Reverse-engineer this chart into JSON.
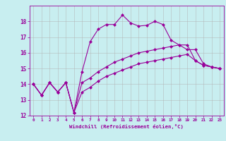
{
  "xlabel": "Windchill (Refroidissement éolien,°C)",
  "bg_color": "#c8eef0",
  "line_color": "#990099",
  "grid_color": "#b0b0b0",
  "xlim": [
    -0.5,
    23.5
  ],
  "ylim": [
    12,
    19
  ],
  "xticks": [
    0,
    1,
    2,
    3,
    4,
    5,
    6,
    7,
    8,
    9,
    10,
    11,
    12,
    13,
    14,
    15,
    16,
    17,
    18,
    19,
    20,
    21,
    22,
    23
  ],
  "yticks": [
    12,
    13,
    14,
    15,
    16,
    17,
    18
  ],
  "line1_x": [
    0,
    1,
    2,
    3,
    4,
    5,
    6,
    7,
    8,
    9,
    10,
    11,
    12,
    13,
    14,
    15,
    16,
    17,
    18,
    19,
    20,
    21,
    22,
    23
  ],
  "line1_y": [
    14.0,
    13.3,
    14.1,
    13.5,
    14.1,
    12.2,
    13.5,
    13.8,
    14.2,
    14.5,
    14.7,
    14.9,
    15.1,
    15.3,
    15.4,
    15.5,
    15.6,
    15.7,
    15.8,
    15.9,
    15.5,
    15.2,
    15.1,
    15.0
  ],
  "line2_x": [
    0,
    1,
    2,
    3,
    4,
    5,
    6,
    7,
    8,
    9,
    10,
    11,
    12,
    13,
    14,
    15,
    16,
    17,
    18,
    19,
    20,
    21,
    22,
    23
  ],
  "line2_y": [
    14.0,
    13.3,
    14.1,
    13.5,
    14.1,
    12.2,
    14.1,
    14.4,
    14.8,
    15.1,
    15.4,
    15.6,
    15.8,
    16.0,
    16.1,
    16.2,
    16.3,
    16.4,
    16.5,
    16.5,
    15.5,
    15.2,
    15.1,
    15.0
  ],
  "line3_x": [
    0,
    1,
    2,
    3,
    4,
    5,
    6,
    7,
    8,
    9,
    10,
    11,
    12,
    13,
    14,
    15,
    16,
    17,
    18,
    19,
    20,
    21,
    22,
    23
  ],
  "line3_y": [
    14.0,
    13.3,
    14.1,
    13.5,
    14.1,
    12.2,
    14.8,
    16.7,
    17.5,
    17.8,
    17.8,
    18.4,
    17.9,
    17.7,
    17.75,
    18.0,
    17.8,
    16.8,
    16.5,
    16.2,
    16.2,
    15.3,
    15.1,
    15.0
  ],
  "marker": "D",
  "markersize": 2.5,
  "linewidth": 0.8
}
